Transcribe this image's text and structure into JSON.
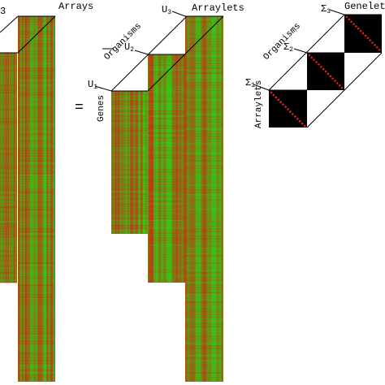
{
  "left_panel": {
    "corner_label": "3",
    "title": "Arrays"
  },
  "equals": "=",
  "middle_panel": {
    "title": "Arraylets",
    "u1": {
      "base": "U",
      "sub": "1"
    },
    "u2": {
      "base": "U",
      "sub": "2"
    },
    "u3": {
      "base": "U",
      "sub": "3"
    },
    "row_axis": "Genes",
    "diag_axis": "Organisms"
  },
  "right_panel": {
    "title": "Genelets",
    "s1": {
      "base": "Σ",
      "sub": "1"
    },
    "s2": {
      "base": "Σ",
      "sub": "2"
    },
    "s3": {
      "base": "Σ",
      "sub": "3"
    },
    "row_axis": "Arraylets",
    "diag_axis": "Organisms"
  }
}
